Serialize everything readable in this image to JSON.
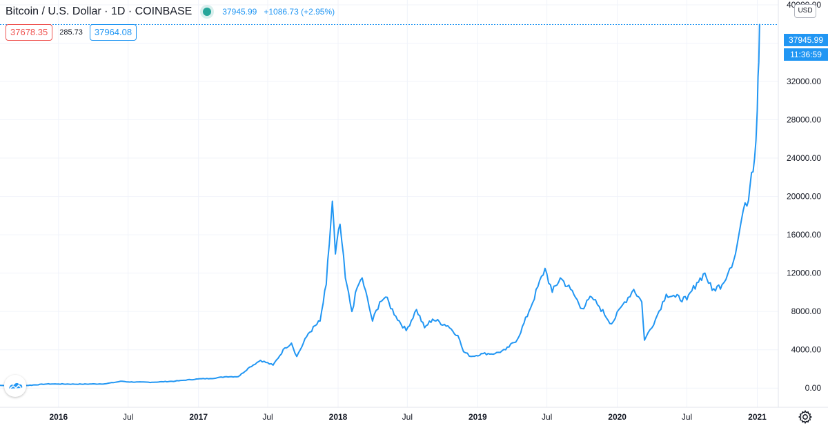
{
  "header": {
    "symbol": "Bitcoin / U.S. Dollar · 1D · COINBASE",
    "last_price": "37945.99",
    "change": "+1086.73 (+2.95%)",
    "status_icon": "market-open-dot-icon"
  },
  "quote": {
    "bid": "37678.35",
    "spread": "285.73",
    "ask": "37964.08"
  },
  "price_axis": {
    "currency": "USD",
    "last_price_label": "37945.99",
    "countdown": "11:36:59"
  },
  "icons": {
    "logo": "tradingview-logo-icon",
    "settings": "gear-icon"
  },
  "colors": {
    "line": "#2196f3",
    "grid": "#f0f3fa",
    "text": "#131722",
    "bid": "#ef5350",
    "ask": "#2196f3"
  },
  "chart_data": {
    "type": "line",
    "title": "Bitcoin / U.S. Dollar · 1D · COINBASE",
    "xlabel": "",
    "ylabel": "",
    "ylim": [
      -2000,
      40500
    ],
    "grid": true,
    "legend": "top-left",
    "y_ticks": [
      0,
      4000,
      8000,
      12000,
      16000,
      20000,
      24000,
      28000,
      32000,
      36000,
      40000
    ],
    "y_tick_labels": [
      "0.00",
      "4000.00",
      "8000.00",
      "12000.00",
      "16000.00",
      "20000.00",
      "24000.00",
      "28000.00",
      "32000.00",
      "",
      "40000.00"
    ],
    "x_ticks": [
      {
        "label": "2016",
        "date": "2016-01-01",
        "year": true
      },
      {
        "label": "Jul",
        "date": "2016-07-01",
        "year": false
      },
      {
        "label": "2017",
        "date": "2017-01-01",
        "year": true
      },
      {
        "label": "Jul",
        "date": "2017-07-01",
        "year": false
      },
      {
        "label": "2018",
        "date": "2018-01-01",
        "year": true
      },
      {
        "label": "Jul",
        "date": "2018-07-01",
        "year": false
      },
      {
        "label": "2019",
        "date": "2019-01-01",
        "year": true
      },
      {
        "label": "Jul",
        "date": "2019-07-01",
        "year": false
      },
      {
        "label": "2020",
        "date": "2020-01-01",
        "year": true
      },
      {
        "label": "Jul",
        "date": "2020-07-01",
        "year": false
      },
      {
        "label": "2021",
        "date": "2021-01-01",
        "year": true
      }
    ],
    "xlim": [
      "2015-08-01",
      "2021-02-25"
    ],
    "series": [
      {
        "name": "",
        "x": [
          "2015-08-01",
          "2015-10-01",
          "2015-12-01",
          "2016-01-01",
          "2016-03-01",
          "2016-05-01",
          "2016-06-15",
          "2016-07-01",
          "2016-09-01",
          "2016-11-01",
          "2016-12-31",
          "2017-02-01",
          "2017-03-15",
          "2017-04-15",
          "2017-05-15",
          "2017-06-12",
          "2017-07-15",
          "2017-08-15",
          "2017-09-01",
          "2017-09-15",
          "2017-10-15",
          "2017-11-15",
          "2017-12-01",
          "2017-12-17",
          "2017-12-25",
          "2018-01-06",
          "2018-01-20",
          "2018-02-06",
          "2018-02-20",
          "2018-03-05",
          "2018-04-01",
          "2018-04-20",
          "2018-05-05",
          "2018-06-01",
          "2018-06-28",
          "2018-07-25",
          "2018-08-15",
          "2018-09-05",
          "2018-10-15",
          "2018-11-10",
          "2018-11-25",
          "2018-12-15",
          "2019-01-15",
          "2019-02-15",
          "2019-03-15",
          "2019-04-15",
          "2019-05-15",
          "2019-06-26",
          "2019-07-15",
          "2019-08-05",
          "2019-09-01",
          "2019-10-01",
          "2019-10-26",
          "2019-11-15",
          "2019-12-17",
          "2020-01-15",
          "2020-02-13",
          "2020-03-05",
          "2020-03-12",
          "2020-04-10",
          "2020-05-08",
          "2020-06-01",
          "2020-07-01",
          "2020-07-27",
          "2020-08-17",
          "2020-09-05",
          "2020-10-01",
          "2020-10-21",
          "2020-11-05",
          "2020-11-25",
          "2020-12-05",
          "2020-12-17",
          "2020-12-25",
          "2021-01-01",
          "2021-01-03",
          "2021-01-05",
          "2021-01-07"
        ],
        "y": [
          280,
          250,
          430,
          430,
          415,
          450,
          720,
          650,
          610,
          730,
          960,
          1000,
          1200,
          1200,
          2200,
          2900,
          2400,
          4200,
          4700,
          3300,
          5700,
          7000,
          10800,
          19500,
          14000,
          17100,
          11500,
          8000,
          10500,
          11500,
          7000,
          9000,
          9500,
          7500,
          6000,
          8200,
          6300,
          7200,
          6500,
          5500,
          3800,
          3300,
          3600,
          3600,
          4000,
          5100,
          8000,
          12500,
          10000,
          11500,
          10300,
          8300,
          9500,
          8500,
          6700,
          8700,
          10300,
          9000,
          5000,
          7200,
          9800,
          9500,
          9200,
          11000,
          12000,
          10200,
          10800,
          12500,
          14000,
          18500,
          19000,
          22500,
          24000,
          29000,
          32500,
          34000,
          37945.99
        ]
      }
    ]
  }
}
